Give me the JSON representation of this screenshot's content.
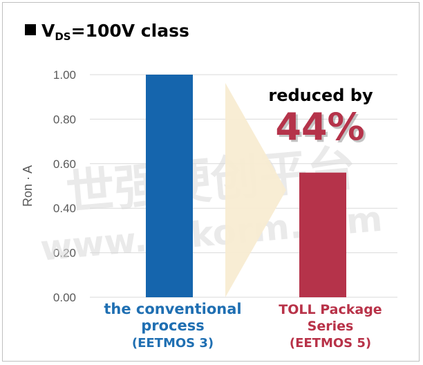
{
  "chart_data": {
    "type": "bar",
    "title_prefix": "V",
    "title_subscript": "DS",
    "title_suffix": "=100V class",
    "ylabel": "Ron · A",
    "ylim": [
      0,
      1.0
    ],
    "yticks": [
      "0.00",
      "0.20",
      "0.40",
      "0.60",
      "0.80",
      "1.00"
    ],
    "categories": [
      {
        "lines": [
          "the conventional",
          "process",
          "(EETMOS 3)"
        ],
        "color": "#1f6fb2"
      },
      {
        "lines": [
          "TOLL Package",
          "Series",
          "(EETMOS 5)"
        ],
        "color": "#b83248"
      }
    ],
    "values": [
      1.0,
      0.56
    ],
    "bar_colors": [
      "#1565ad",
      "#b5334a"
    ],
    "annotation": {
      "line1": "reduced by",
      "line2": "44%",
      "arrow_color": "#f8ecd2",
      "accent": "#b5334a"
    },
    "grid": true
  },
  "watermark": {
    "line1": "世强硬创平台",
    "line2": "www.sekorm.com"
  }
}
